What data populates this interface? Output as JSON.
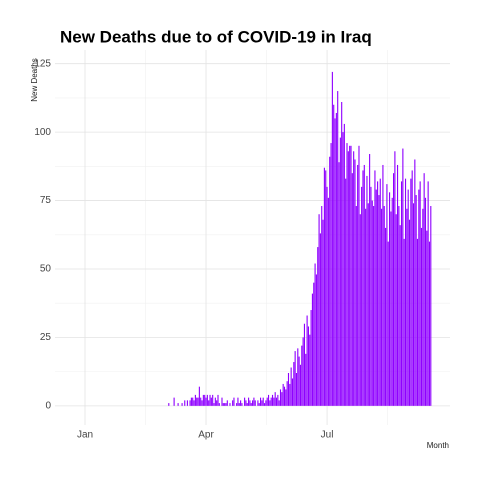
{
  "chart_data": {
    "type": "bar",
    "title": "New Deaths due to of COVID-19 in Iraq",
    "y_label": "New Deaths",
    "x_label": "Month",
    "color": "#8f00ff",
    "grid": true,
    "ylim": [
      -7,
      130
    ],
    "yticks": [
      0,
      25,
      50,
      75,
      100,
      125
    ],
    "categories": [
      "Jan",
      null,
      null,
      null,
      null,
      null,
      null,
      null,
      null,
      null,
      null,
      null,
      null,
      null,
      null,
      null,
      null,
      null,
      null,
      null,
      null,
      null,
      null,
      null,
      null,
      null,
      null,
      null,
      null,
      null,
      null,
      null,
      null,
      null,
      null,
      null,
      null,
      null,
      null,
      null,
      null,
      null,
      null,
      null,
      null,
      null,
      null,
      null,
      null,
      null,
      null,
      null,
      null,
      null,
      null,
      null,
      null,
      null,
      null,
      null,
      null,
      null,
      null,
      null,
      null,
      null,
      null,
      null,
      null,
      null,
      null,
      null,
      null,
      null,
      null,
      null,
      null,
      null,
      null,
      null,
      null,
      null,
      null,
      null,
      null,
      null,
      null,
      null,
      null,
      null,
      null,
      "Apr",
      null,
      null,
      null,
      null,
      null,
      null,
      null,
      null,
      null,
      null,
      null,
      null,
      null,
      null,
      null,
      null,
      null,
      null,
      null,
      null,
      null,
      null,
      null,
      null,
      null,
      null,
      null,
      null,
      null,
      null,
      null,
      null,
      null,
      null,
      null,
      null,
      null,
      null,
      null,
      null,
      null,
      null,
      null,
      null,
      null,
      null,
      null,
      null,
      null,
      null,
      null,
      null,
      null,
      null,
      null,
      null,
      null,
      null,
      null,
      null,
      null,
      null,
      null,
      null,
      null,
      null,
      null,
      null,
      null,
      null,
      null,
      null,
      null,
      null,
      null,
      null,
      null,
      null,
      null,
      null,
      null,
      null,
      null,
      null,
      null,
      null,
      null,
      null,
      null,
      null,
      "Jul",
      null,
      null,
      null,
      null,
      null,
      null,
      null,
      null,
      null,
      null,
      null,
      null,
      null,
      null,
      null,
      null,
      null,
      null,
      null,
      null,
      null,
      null,
      null,
      null,
      null,
      null,
      null,
      null,
      null,
      null,
      null,
      null,
      null,
      null,
      null,
      null,
      null,
      null,
      null,
      null,
      null,
      null,
      null,
      null,
      null,
      null,
      null,
      null,
      null,
      null,
      null,
      null,
      null,
      null,
      null,
      null,
      null,
      null,
      null,
      null,
      null,
      null,
      null,
      null,
      null,
      null,
      null,
      null,
      null,
      null,
      null,
      null,
      null,
      null,
      null,
      null,
      null,
      null
    ],
    "values": [
      0,
      0,
      0,
      0,
      0,
      0,
      0,
      0,
      0,
      0,
      0,
      0,
      0,
      0,
      0,
      0,
      0,
      0,
      0,
      0,
      0,
      0,
      0,
      0,
      0,
      0,
      0,
      0,
      0,
      0,
      0,
      0,
      0,
      0,
      0,
      0,
      0,
      0,
      0,
      0,
      0,
      0,
      0,
      0,
      0,
      0,
      0,
      0,
      0,
      0,
      0,
      0,
      0,
      0,
      0,
      0,
      0,
      0,
      0,
      0,
      0,
      0,
      0,
      1,
      0,
      0,
      0,
      3,
      0,
      0,
      1,
      0,
      0,
      1,
      0,
      2,
      0,
      2,
      0,
      2,
      3,
      3,
      2,
      4,
      3,
      3,
      7,
      3,
      2,
      4,
      4,
      3,
      4,
      2,
      4,
      3,
      4,
      1,
      3,
      2,
      4,
      1,
      0,
      3,
      1,
      1,
      1,
      2,
      0,
      1,
      0,
      2,
      3,
      0,
      1,
      3,
      1,
      2,
      1,
      0,
      3,
      2,
      1,
      3,
      2,
      1,
      2,
      3,
      2,
      0,
      2,
      1,
      3,
      2,
      3,
      1,
      2,
      3,
      4,
      2,
      3,
      4,
      3,
      5,
      3,
      4,
      2,
      6,
      5,
      8,
      7,
      6,
      9,
      12,
      8,
      14,
      10,
      16,
      20,
      12,
      21,
      18,
      15,
      22,
      25,
      30,
      19,
      33,
      29,
      26,
      35,
      41,
      45,
      52,
      48,
      58,
      70,
      63,
      73,
      68,
      87,
      86,
      80,
      76,
      91,
      96,
      122,
      110,
      105,
      107,
      115,
      89,
      98,
      111,
      100,
      103,
      83,
      96,
      93,
      95,
      95,
      85,
      93,
      90,
      73,
      88,
      95,
      70,
      80,
      86,
      88,
      72,
      84,
      74,
      92,
      80,
      75,
      73,
      86,
      79,
      82,
      77,
      83,
      72,
      88,
      73,
      65,
      81,
      60,
      78,
      71,
      76,
      85,
      93,
      70,
      88,
      73,
      66,
      82,
      94,
      61,
      83,
      72,
      79,
      68,
      83,
      86,
      74,
      90,
      77,
      61,
      79,
      82,
      65,
      72,
      85,
      76,
      64,
      82,
      60,
      73
    ]
  }
}
